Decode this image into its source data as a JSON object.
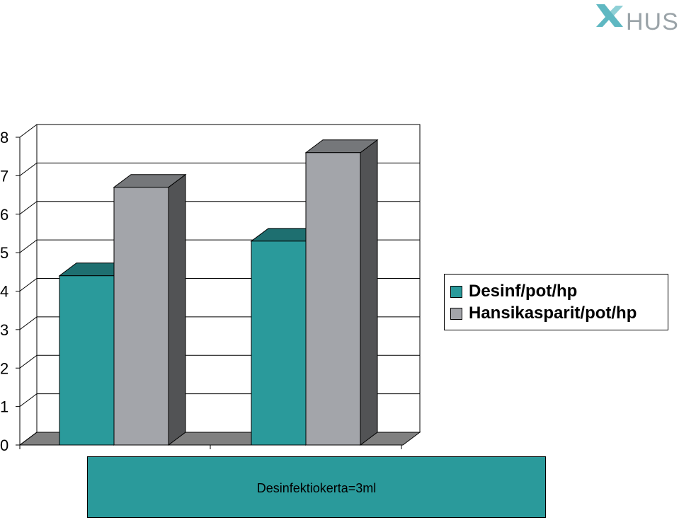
{
  "logo": {
    "text": "HUS",
    "primary_color": "#5fb8c2",
    "secondary_color": "#9aa3a8"
  },
  "chart_data": {
    "type": "bar",
    "three_d": true,
    "categories": [
      "",
      ""
    ],
    "series": [
      {
        "name": "Desinf/pot/hp",
        "color": "#2a9a9b",
        "values": [
          4.4,
          5.3
        ]
      },
      {
        "name": "Hansikasparit/pot/hp",
        "color": "#a3a5aa",
        "values": [
          6.7,
          7.6
        ]
      }
    ],
    "y_ticks": [
      "0",
      "1",
      "2",
      "3",
      "4",
      "5",
      "6",
      "7",
      "8"
    ],
    "ylim": [
      0,
      8
    ],
    "grid": true,
    "legend_position": "right",
    "annotation": "Desinfektiokerta=3ml"
  }
}
